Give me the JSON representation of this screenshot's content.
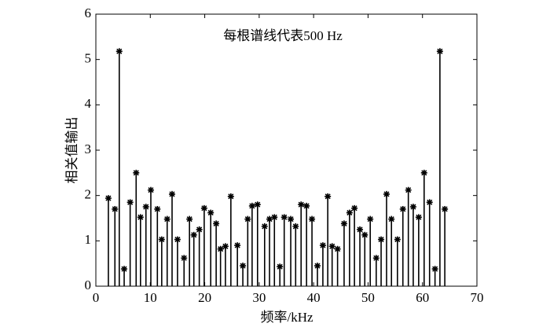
{
  "chart_data": {
    "type": "stem",
    "annotation": "每根谱线代表500 Hz",
    "xlabel": "频率/kHz",
    "ylabel": "相关值输出",
    "x": [
      2.3,
      3.5,
      4.3,
      5.2,
      6.3,
      7.4,
      8.2,
      9.2,
      10.1,
      11.3,
      12.1,
      13.1,
      14.0,
      15.0,
      16.2,
      17.2,
      18.0,
      19.0,
      19.9,
      21.1,
      22.1,
      22.9,
      23.8,
      24.8,
      26.0,
      27.0,
      27.9,
      28.7,
      29.7,
      31.0,
      31.9,
      32.8,
      33.8,
      34.6,
      35.8,
      36.7,
      37.7,
      38.7,
      39.7,
      40.7,
      41.7,
      42.6,
      43.4,
      44.4,
      45.6,
      46.6,
      47.5,
      48.5,
      49.4,
      50.4,
      51.5,
      52.4,
      53.4,
      54.3,
      55.4,
      56.4,
      57.4,
      58.3,
      59.3,
      60.3,
      61.3,
      62.3,
      63.2,
      64.1
    ],
    "values": [
      1.94,
      1.7,
      5.18,
      0.38,
      1.85,
      2.5,
      1.52,
      1.75,
      2.12,
      1.7,
      1.03,
      1.48,
      2.03,
      1.03,
      0.62,
      1.48,
      1.13,
      1.25,
      1.72,
      1.62,
      1.38,
      0.82,
      0.88,
      1.98,
      0.9,
      0.45,
      1.48,
      1.77,
      1.8,
      1.32,
      1.48,
      1.52,
      0.43,
      1.52,
      1.48,
      1.32,
      1.8,
      1.77,
      1.48,
      0.45,
      0.9,
      1.98,
      0.88,
      0.82,
      1.38,
      1.62,
      1.72,
      1.25,
      1.13,
      1.48,
      0.62,
      1.03,
      2.03,
      1.48,
      1.03,
      1.7,
      2.12,
      1.75,
      1.52,
      2.5,
      1.85,
      0.38,
      5.18,
      1.7
    ],
    "color": "#000000",
    "xlim": [
      0,
      70
    ],
    "xticks": [
      0,
      10,
      20,
      30,
      40,
      50,
      60,
      70
    ],
    "ylim": [
      0,
      6
    ],
    "yticks": [
      0,
      1,
      2,
      3,
      4,
      5,
      6
    ]
  }
}
